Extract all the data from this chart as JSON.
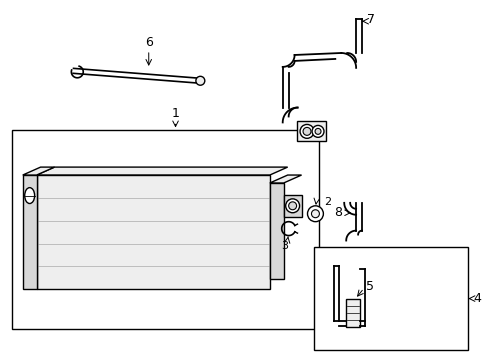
{
  "bg_color": "#ffffff",
  "line_color": "#000000",
  "gray1": "#d8d8d8",
  "gray2": "#eeeeee",
  "gray3": "#c8c8c8",
  "fig_width": 4.89,
  "fig_height": 3.6,
  "dpi": 100
}
